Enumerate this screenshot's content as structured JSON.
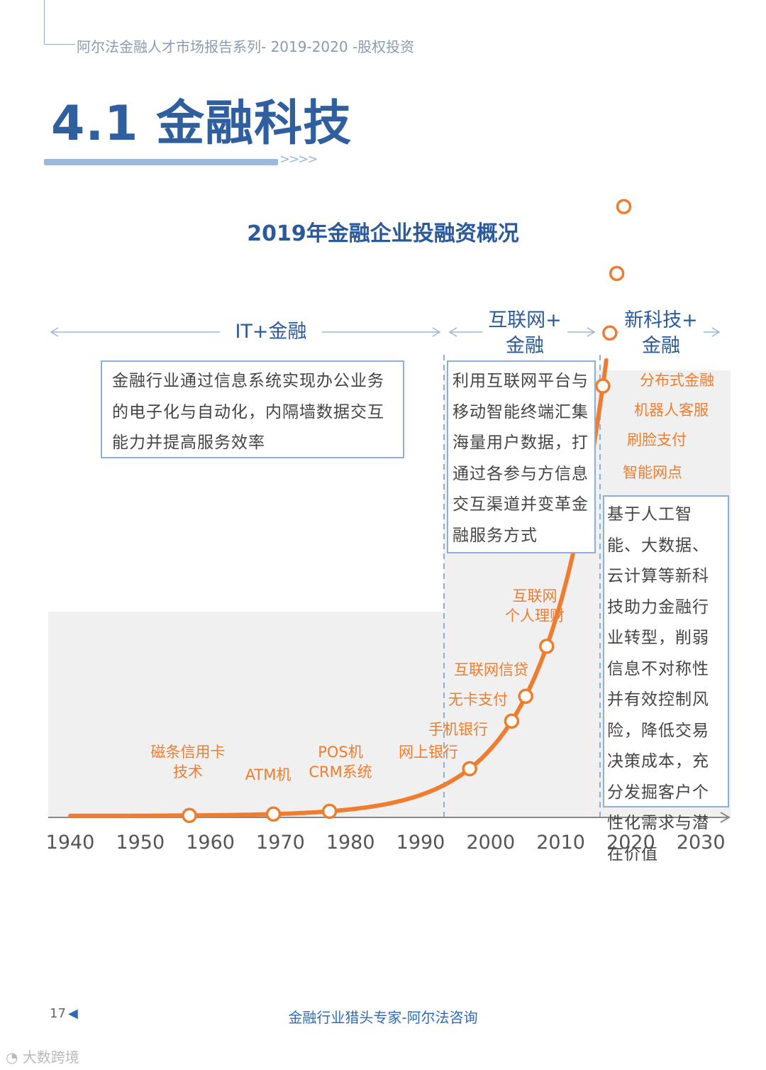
{
  "header": {
    "series_title": "阿尔法金融人才市场报告系列- 2019-2020 -股权投资",
    "section_title": "4.1 金融科技",
    "chevrons": ">>>>"
  },
  "chart_data": {
    "type": "line",
    "title": "2019年金融企业投融资概况",
    "x_ticks": [
      "1940",
      "1950",
      "1960",
      "1970",
      "1980",
      "1990",
      "2000",
      "2010",
      "2020",
      "2030"
    ],
    "xlim": [
      1940,
      2030
    ],
    "eras": [
      {
        "label": "IT+金融",
        "from": 1937,
        "to": 1993
      },
      {
        "label_lines": [
          "互联网+",
          "金融"
        ],
        "from": 1993,
        "to": 2015
      },
      {
        "label_lines": [
          "新科技+",
          "金融"
        ],
        "from": 2015,
        "to": 2032
      }
    ],
    "milestones": [
      {
        "year": 1957,
        "label_lines": [
          "磁条信用卡",
          "技术"
        ]
      },
      {
        "year": 1969,
        "label_lines": [
          "ATM机"
        ]
      },
      {
        "year": 1977,
        "label_lines": [
          "POS机",
          "CRM系统"
        ]
      },
      {
        "year": 1997,
        "label_lines": [
          "网上银行"
        ]
      },
      {
        "year": 2003,
        "label_lines": [
          "手机银行"
        ]
      },
      {
        "year": 2005,
        "label_lines": [
          "无卡支付"
        ]
      },
      {
        "year": 2008,
        "label_lines": [
          "互联网信贷"
        ]
      },
      {
        "year": 2013,
        "label_lines": [
          "互联网",
          "个人理财"
        ]
      },
      {
        "year": 2016,
        "label_lines": [
          "智能网点"
        ]
      },
      {
        "year": 2017,
        "label_lines": [
          "刷脸支付"
        ]
      },
      {
        "year": 2018,
        "label_lines": [
          "机器人客服"
        ]
      },
      {
        "year": 2019,
        "label_lines": [
          "分布式金融"
        ]
      }
    ],
    "descriptions": [
      {
        "era": "IT+金融",
        "text": "金融行业通过信息系统实现办公业务的电子化与自动化，内隔墙数据交互能力并提高服务效率"
      },
      {
        "era": "互联网+金融",
        "text": "利用互联网平台与移动智能终端汇集海量用户数据，打通过各参与方信息交互渠道并变革金融服务方式"
      },
      {
        "era": "新科技+金融",
        "text": "基于人工智能、大数据、云计算等新科技助力金融行业转型，削弱信息不对称性并有效控制风险，降低交易决策成本，充分发掘客户个性化需求与潜在价值"
      }
    ],
    "colors": {
      "curve": "#ee7d30",
      "axis": "#888888",
      "era_text": "#2a5a9a",
      "box_border": "#8eaed3",
      "shade": "#f0f0f0"
    }
  },
  "footer": {
    "page_number": "17",
    "tagline": "金融行业猎头专家-阿尔法咨询",
    "logo_text": "大数跨境"
  }
}
